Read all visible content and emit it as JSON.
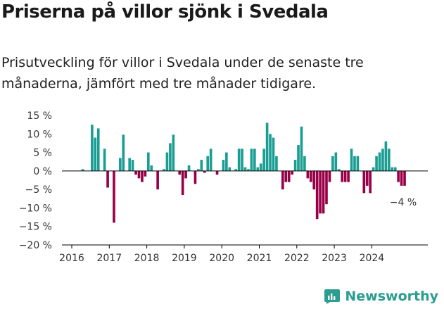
{
  "title": "Priserna på villor sjönk i Svedala",
  "subtitle": "Prisutveckling för villor i Svedala under de senaste tre månaderna, jämfört med tre månader tidigare.",
  "brand": "Newsworthy",
  "colors": {
    "positive": "#1a9e94",
    "negative": "#990047",
    "axis": "#000000",
    "brand": "#2a9d8f"
  },
  "chart_data": {
    "type": "bar",
    "ylim": [
      -20,
      15
    ],
    "yticks": [
      15,
      10,
      5,
      0,
      -5,
      -10,
      -15,
      -20
    ],
    "ytick_labels": [
      "15 %",
      "10 %",
      "5 %",
      "0 %",
      "−5 %",
      "−10 %",
      "−15 %",
      "−20 %"
    ],
    "xticks": [
      "2016",
      "2017",
      "2018",
      "2019",
      "2020",
      "2021",
      "2022",
      "2023",
      "2024"
    ],
    "x_start": "2016-01",
    "last_value_label": "−4 %",
    "values": [
      0,
      0,
      0,
      0.5,
      0,
      0,
      12.5,
      9,
      11.5,
      0,
      6,
      -4.5,
      0,
      -14,
      0,
      3.5,
      9.8,
      0,
      3.5,
      3,
      -1,
      -2,
      -3,
      -1.5,
      5,
      1.5,
      0,
      -5,
      0,
      0.5,
      5,
      7.5,
      9.8,
      0,
      -1,
      -6.5,
      -2,
      1.5,
      0,
      -3.5,
      0.5,
      3,
      -0.5,
      4,
      6,
      0,
      -1,
      0,
      3,
      5,
      1,
      0,
      0.5,
      6,
      6,
      1,
      0.5,
      6,
      6,
      1,
      2,
      6,
      13,
      10,
      9,
      4,
      0,
      -5,
      -3,
      -3,
      -1,
      3,
      7,
      12,
      4,
      -2,
      -3,
      -5,
      -13,
      -11.5,
      -11.5,
      -9,
      -3,
      4,
      5,
      0.5,
      -3,
      -3,
      -3,
      6,
      4,
      4,
      0,
      -6,
      -4,
      -6,
      1,
      4,
      5,
      6,
      8,
      6,
      1,
      1,
      -3,
      -4,
      -4
    ]
  }
}
